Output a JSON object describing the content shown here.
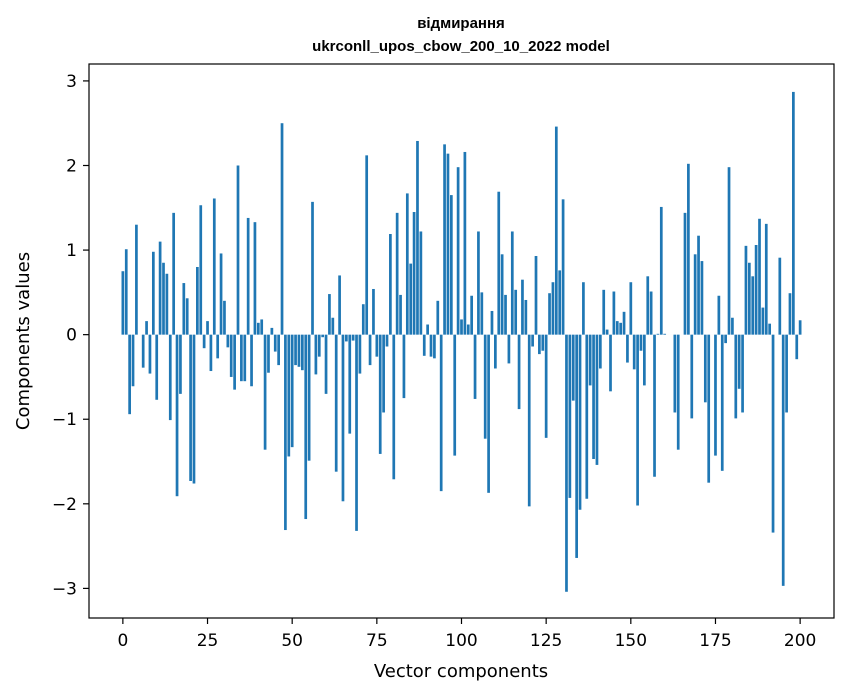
{
  "chart_data": {
    "type": "bar",
    "title_line1": "відмирання",
    "title_line2": "ukrconll_upos_cbow_200_10_2022 model",
    "xlabel": "Vector components",
    "ylabel": "Components values",
    "xlim": [
      -10,
      210
    ],
    "ylim": [
      -3.35,
      3.2
    ],
    "xticks": [
      0,
      25,
      50,
      75,
      100,
      125,
      150,
      175,
      200
    ],
    "yticks": [
      -3,
      -2,
      -1,
      0,
      1,
      2,
      3
    ],
    "ytick_labels": [
      "−3",
      "−2",
      "−1",
      "0",
      "1",
      "2",
      "3"
    ],
    "bar_color": "#1f77b4",
    "values": [
      0.75,
      1.01,
      -0.94,
      -0.61,
      1.3,
      0.0,
      -0.39,
      0.16,
      -0.46,
      0.98,
      -0.77,
      1.1,
      0.85,
      0.72,
      -1.01,
      1.44,
      -1.91,
      -0.7,
      0.61,
      0.43,
      -1.73,
      -1.76,
      0.8,
      1.53,
      -0.16,
      0.16,
      -0.43,
      1.61,
      -0.28,
      0.96,
      0.4,
      -0.15,
      -0.5,
      -0.65,
      2.0,
      -0.55,
      -0.55,
      1.38,
      -0.61,
      1.33,
      0.14,
      0.18,
      -1.36,
      -0.45,
      0.08,
      -0.2,
      -0.36,
      2.5,
      -2.31,
      -1.44,
      -1.33,
      -0.36,
      -0.38,
      -0.42,
      -2.18,
      -1.49,
      1.57,
      -0.47,
      -0.26,
      -0.03,
      -0.7,
      0.48,
      0.2,
      -1.62,
      0.7,
      -1.97,
      -0.08,
      -1.17,
      -0.07,
      -2.32,
      -0.46,
      0.36,
      2.12,
      -0.36,
      0.54,
      -0.26,
      -1.41,
      -0.92,
      -0.14,
      1.19,
      -1.71,
      1.44,
      0.47,
      -0.75,
      1.67,
      0.84,
      1.45,
      2.29,
      1.22,
      -0.25,
      0.12,
      -0.26,
      -0.28,
      0.4,
      -1.85,
      2.25,
      2.14,
      1.65,
      -1.43,
      1.98,
      0.18,
      2.16,
      0.12,
      0.46,
      -0.76,
      1.22,
      0.5,
      -1.23,
      -1.87,
      0.28,
      -0.4,
      1.69,
      0.95,
      0.47,
      -0.34,
      1.22,
      0.53,
      -0.88,
      0.65,
      0.41,
      -2.03,
      -0.14,
      0.93,
      -0.23,
      -0.19,
      -1.22,
      0.49,
      0.62,
      2.46,
      0.76,
      1.6,
      -3.04,
      -1.93,
      -0.78,
      -2.64,
      -2.07,
      0.62,
      -1.94,
      -0.6,
      -1.47,
      -1.54,
      -0.4,
      0.53,
      0.06,
      -0.67,
      0.51,
      0.16,
      0.14,
      0.27,
      -0.33,
      0.62,
      -0.41,
      -2.02,
      -0.19,
      -0.6,
      0.69,
      0.51,
      -1.68,
      0.01,
      1.51,
      0.01,
      0.0,
      0.0,
      -0.92,
      -1.36,
      0.0,
      1.44,
      2.02,
      -0.99,
      0.95,
      1.17,
      0.87,
      -0.8,
      -1.75,
      0.0,
      -1.43,
      0.46,
      -1.61,
      -0.1,
      1.98,
      0.2,
      -0.99,
      -0.64,
      -0.92,
      1.05,
      0.85,
      0.69,
      1.06,
      1.37,
      0.32,
      1.31,
      0.13,
      -2.34,
      0.0,
      0.91,
      -2.97,
      -0.92,
      0.49,
      2.87,
      -0.29,
      0.17
    ]
  }
}
